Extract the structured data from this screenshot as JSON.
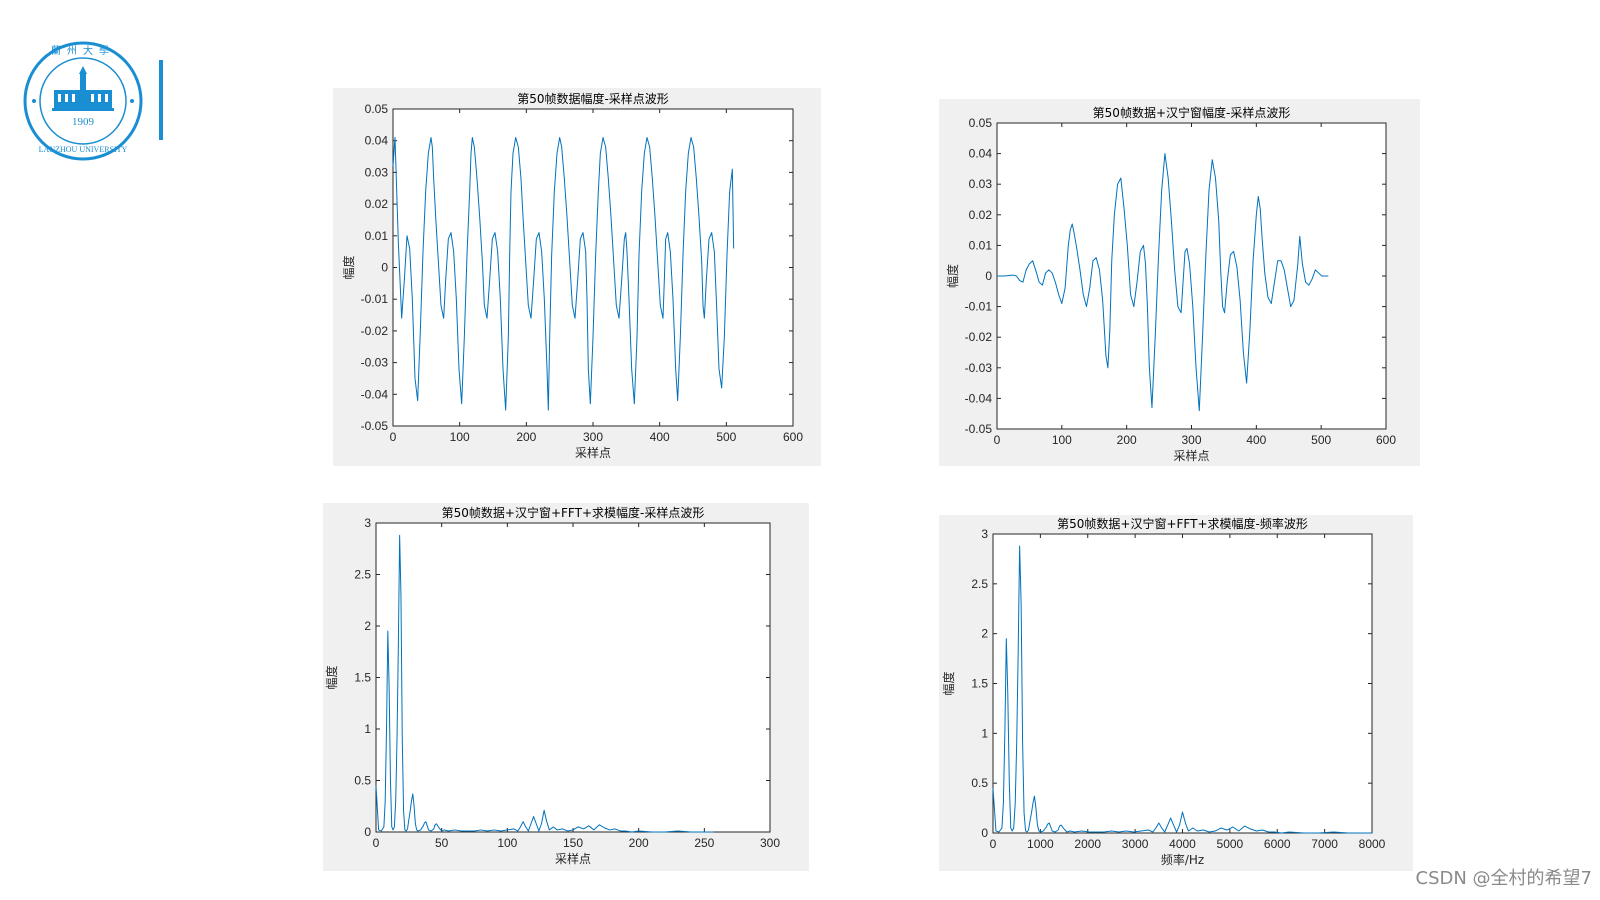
{
  "logo": {
    "name": "LANZHOU UNIVERSITY",
    "year": "1909",
    "chinese": "蘭州大學",
    "color": "#1a8ed2"
  },
  "watermark": "CSDN @全村的希望7",
  "chart_data": [
    {
      "type": "line",
      "title": "第50帧数据幅度-采样点波形",
      "xlabel": "采样点",
      "ylabel": "幅度",
      "xlim": [
        0,
        600
      ],
      "ylim": [
        -0.05,
        0.05
      ],
      "xticks": [
        0,
        100,
        200,
        300,
        400,
        500,
        600
      ],
      "xtick_labels": [
        "0",
        "100",
        "200",
        "300",
        "400",
        "500",
        "600"
      ],
      "yticks": [
        -0.05,
        -0.04,
        -0.03,
        -0.02,
        -0.01,
        0,
        0.01,
        0.02,
        0.03,
        0.04,
        0.05
      ],
      "ytick_labels": [
        "-0.05",
        "-0.04",
        "-0.03",
        "-0.02",
        "-0.01",
        "0",
        "0.01",
        "0.02",
        "0.03",
        "0.04",
        "0.05"
      ],
      "line_color": "#0072bd",
      "series": [
        {
          "x": [
            0,
            3,
            8,
            13,
            17,
            21,
            25,
            29,
            33,
            37,
            41,
            45,
            49,
            53,
            57,
            59,
            61,
            64,
            68,
            72,
            76,
            79,
            83,
            87,
            91,
            95,
            99,
            103,
            107,
            111,
            115,
            117,
            119,
            122,
            126,
            130,
            134,
            137,
            141,
            145,
            149,
            153,
            157,
            161,
            165,
            169,
            173,
            175,
            177,
            180,
            184,
            188,
            192,
            195,
            199,
            203,
            207,
            211,
            215,
            219,
            223,
            227,
            231,
            233,
            235,
            238,
            242,
            246,
            250,
            253,
            257,
            261,
            265,
            269,
            273,
            277,
            281,
            285,
            289,
            291,
            293,
            296,
            300,
            304,
            308,
            311,
            315,
            319,
            323,
            327,
            331,
            335,
            339,
            343,
            347,
            349,
            351,
            354,
            358,
            362,
            366,
            369,
            373,
            377,
            381,
            385,
            389,
            393,
            397,
            401,
            405,
            407,
            409,
            412,
            416,
            420,
            424,
            427,
            431,
            435,
            439,
            443,
            447,
            451,
            455,
            459,
            463,
            465,
            467,
            470,
            474,
            478,
            482,
            485,
            489,
            493,
            497,
            501,
            505,
            509,
            511
          ],
          "y": [
            0.032,
            0.041,
            0.008,
            -0.016,
            -0.004,
            0.01,
            0.006,
            -0.01,
            -0.035,
            -0.042,
            -0.02,
            0.005,
            0.024,
            0.036,
            0.041,
            0.038,
            0.028,
            0.016,
            0.002,
            -0.012,
            -0.016,
            -0.004,
            0.009,
            0.011,
            0.005,
            -0.01,
            -0.032,
            -0.043,
            -0.022,
            0.004,
            0.024,
            0.036,
            0.041,
            0.038,
            0.028,
            0.016,
            0.002,
            -0.012,
            -0.016,
            -0.004,
            0.009,
            0.011,
            0.005,
            -0.01,
            -0.032,
            -0.045,
            -0.022,
            0.004,
            0.024,
            0.036,
            0.041,
            0.038,
            0.028,
            0.016,
            0.002,
            -0.012,
            -0.016,
            -0.004,
            0.009,
            0.011,
            0.005,
            -0.01,
            -0.032,
            -0.045,
            -0.022,
            0.004,
            0.024,
            0.036,
            0.041,
            0.038,
            0.028,
            0.016,
            0.002,
            -0.012,
            -0.016,
            -0.004,
            0.009,
            0.011,
            0.005,
            -0.01,
            -0.032,
            -0.043,
            -0.022,
            0.004,
            0.024,
            0.036,
            0.041,
            0.038,
            0.028,
            0.016,
            0.002,
            -0.012,
            -0.016,
            -0.004,
            0.009,
            0.011,
            0.005,
            -0.01,
            -0.032,
            -0.043,
            -0.022,
            0.004,
            0.024,
            0.036,
            0.041,
            0.038,
            0.028,
            0.016,
            0.002,
            -0.012,
            -0.016,
            -0.004,
            0.009,
            0.011,
            0.005,
            -0.01,
            -0.032,
            -0.042,
            -0.022,
            0.004,
            0.024,
            0.036,
            0.041,
            0.038,
            0.028,
            0.016,
            0.002,
            -0.012,
            -0.016,
            -0.004,
            0.009,
            0.011,
            0.005,
            -0.01,
            -0.032,
            -0.038,
            -0.022,
            0.004,
            0.024,
            0.031,
            0.006
          ]
        }
      ]
    },
    {
      "type": "line",
      "title": "第50帧数据+汉宁窗幅度-采样点波形",
      "xlabel": "采样点",
      "ylabel": "幅度",
      "xlim": [
        0,
        600
      ],
      "ylim": [
        -0.05,
        0.05
      ],
      "xticks": [
        0,
        100,
        200,
        300,
        400,
        500,
        600
      ],
      "xtick_labels": [
        "0",
        "100",
        "200",
        "300",
        "400",
        "500",
        "600"
      ],
      "yticks": [
        -0.05,
        -0.04,
        -0.03,
        -0.02,
        -0.01,
        0,
        0.01,
        0.02,
        0.03,
        0.04,
        0.05
      ],
      "ytick_labels": [
        "-0.05",
        "-0.04",
        "-0.03",
        "-0.02",
        "-0.01",
        "0",
        "0.01",
        "0.02",
        "0.03",
        "0.04",
        "0.05"
      ],
      "line_color": "#0072bd",
      "series": [
        {
          "x": [
            0,
            5,
            10,
            15,
            20,
            25,
            30,
            35,
            40,
            45,
            50,
            55,
            58,
            61,
            65,
            70,
            75,
            80,
            85,
            90,
            95,
            100,
            105,
            110,
            113,
            116,
            119,
            123,
            128,
            133,
            138,
            143,
            148,
            153,
            158,
            163,
            168,
            171,
            174,
            177,
            181,
            186,
            191,
            196,
            201,
            206,
            211,
            216,
            221,
            226,
            229,
            232,
            235,
            239,
            244,
            249,
            254,
            259,
            264,
            269,
            274,
            279,
            284,
            287,
            290,
            293,
            297,
            302,
            307,
            312,
            317,
            322,
            327,
            332,
            337,
            342,
            345,
            348,
            351,
            355,
            360,
            365,
            370,
            375,
            380,
            385,
            390,
            395,
            400,
            403,
            406,
            409,
            413,
            418,
            423,
            428,
            433,
            438,
            443,
            448,
            453,
            458,
            461,
            464,
            467,
            471,
            476,
            481,
            486,
            491,
            496,
            501,
            506,
            511
          ],
          "y": [
            0.0,
            0.0,
            0.0,
            0.0001,
            0.0002,
            0.0003,
            0.0,
            -0.0015,
            -0.002,
            0.002,
            0.004,
            0.005,
            0.003,
            0.001,
            -0.002,
            -0.003,
            0.001,
            0.002,
            0.001,
            -0.002,
            -0.006,
            -0.009,
            -0.004,
            0.01,
            0.015,
            0.017,
            0.014,
            0.009,
            0.002,
            -0.006,
            -0.01,
            -0.004,
            0.005,
            0.006,
            0.002,
            -0.008,
            -0.026,
            -0.03,
            -0.018,
            0.005,
            0.02,
            0.03,
            0.032,
            0.022,
            0.01,
            -0.006,
            -0.01,
            -0.002,
            0.008,
            0.01,
            0.004,
            -0.01,
            -0.03,
            -0.043,
            -0.02,
            0.006,
            0.028,
            0.04,
            0.032,
            0.018,
            0.002,
            -0.01,
            -0.012,
            -0.002,
            0.008,
            0.009,
            0.004,
            -0.01,
            -0.03,
            -0.044,
            -0.02,
            0.006,
            0.028,
            0.038,
            0.032,
            0.018,
            0.002,
            -0.01,
            -0.012,
            -0.002,
            0.007,
            0.008,
            0.003,
            -0.008,
            -0.025,
            -0.035,
            -0.018,
            0.005,
            0.02,
            0.026,
            0.022,
            0.012,
            0.001,
            -0.007,
            -0.009,
            -0.002,
            0.005,
            0.005,
            0.002,
            -0.004,
            -0.01,
            -0.008,
            -0.002,
            0.004,
            0.013,
            0.004,
            -0.002,
            -0.003,
            -0.001,
            0.002,
            0.001,
            0.0,
            0.0,
            0.0
          ],
          "x_tail_note": ""
        }
      ]
    },
    {
      "type": "line",
      "title": "第50帧数据+汉宁窗+FFT+求模幅度-采样点波形",
      "xlabel": "采样点",
      "ylabel": "幅度",
      "xlim": [
        0,
        300
      ],
      "ylim": [
        0,
        3
      ],
      "xticks": [
        0,
        50,
        100,
        150,
        200,
        250,
        300
      ],
      "xtick_labels": [
        "0",
        "50",
        "100",
        "150",
        "200",
        "250",
        "300"
      ],
      "yticks": [
        0,
        0.5,
        1,
        1.5,
        2,
        2.5,
        3
      ],
      "ytick_labels": [
        "0",
        "0.5",
        "1",
        "1.5",
        "2",
        "2.5",
        "3"
      ],
      "line_color": "#0072bd",
      "series": [
        {
          "x": [
            0,
            2,
            4,
            6,
            7,
            8,
            9,
            10,
            11,
            12,
            13,
            14,
            15,
            16,
            17,
            18,
            19,
            20,
            21,
            22,
            23,
            24,
            25,
            26,
            27,
            28,
            29,
            30,
            31,
            32,
            34,
            36,
            37,
            38,
            39,
            40,
            42,
            44,
            45,
            46,
            48,
            50,
            52,
            55,
            60,
            65,
            70,
            75,
            80,
            85,
            90,
            95,
            100,
            105,
            108,
            110,
            112,
            114,
            116,
            118,
            120,
            122,
            124,
            126,
            128,
            130,
            132,
            135,
            138,
            142,
            146,
            150,
            154,
            158,
            162,
            166,
            170,
            174,
            178,
            182,
            186,
            190,
            195,
            200,
            210,
            220,
            230,
            240,
            250,
            257
          ],
          "y": [
            0.45,
            0.02,
            0.01,
            0.05,
            0.3,
            1.0,
            1.95,
            1.4,
            0.5,
            0.05,
            0.02,
            0.05,
            0.3,
            0.9,
            1.8,
            2.88,
            2.3,
            0.9,
            0.2,
            0.02,
            0.01,
            0.03,
            0.12,
            0.2,
            0.3,
            0.37,
            0.25,
            0.08,
            0.02,
            0.01,
            0.02,
            0.06,
            0.09,
            0.1,
            0.06,
            0.02,
            0.01,
            0.03,
            0.07,
            0.08,
            0.04,
            0.01,
            0.02,
            0.01,
            0.02,
            0.01,
            0.01,
            0.01,
            0.02,
            0.01,
            0.02,
            0.01,
            0.02,
            0.03,
            0.01,
            0.05,
            0.1,
            0.05,
            0.01,
            0.08,
            0.15,
            0.08,
            0.01,
            0.08,
            0.21,
            0.1,
            0.02,
            0.05,
            0.02,
            0.03,
            0.01,
            0.02,
            0.05,
            0.03,
            0.06,
            0.02,
            0.07,
            0.04,
            0.02,
            0.03,
            0.01,
            0.01,
            0.0,
            0.01,
            0.0,
            0.0,
            0.01,
            0.0,
            0.0,
            0.0
          ]
        }
      ]
    },
    {
      "type": "line",
      "title": "第50帧数据+汉宁窗+FFT+求模幅度-频率波形",
      "xlabel": "频率/Hz",
      "ylabel": "幅度",
      "xlim": [
        0,
        8000
      ],
      "ylim": [
        0,
        3
      ],
      "xticks": [
        0,
        1000,
        2000,
        3000,
        4000,
        5000,
        6000,
        7000,
        8000
      ],
      "xtick_labels": [
        "0",
        "1000",
        "2000",
        "3000",
        "4000",
        "5000",
        "6000",
        "7000",
        "8000"
      ],
      "yticks": [
        0,
        0.5,
        1,
        1.5,
        2,
        2.5,
        3
      ],
      "ytick_labels": [
        "0",
        "0.5",
        "1",
        "1.5",
        "2",
        "2.5",
        "3"
      ],
      "line_color": "#0072bd",
      "series": [
        {
          "x": [
            0,
            62,
            125,
            188,
            219,
            250,
            281,
            312,
            344,
            375,
            406,
            437,
            469,
            500,
            531,
            562,
            594,
            625,
            656,
            688,
            719,
            750,
            781,
            812,
            844,
            875,
            906,
            938,
            969,
            1000,
            1062,
            1125,
            1156,
            1188,
            1219,
            1250,
            1312,
            1375,
            1406,
            1438,
            1500,
            1562,
            1625,
            1719,
            1875,
            2031,
            2188,
            2344,
            2500,
            2656,
            2812,
            2969,
            3125,
            3281,
            3375,
            3438,
            3500,
            3562,
            3625,
            3688,
            3750,
            3812,
            3875,
            3938,
            4000,
            4062,
            4125,
            4219,
            4312,
            4438,
            4562,
            4688,
            4812,
            4938,
            5062,
            5188,
            5312,
            5438,
            5562,
            5688,
            5812,
            5938,
            6094,
            6250,
            6562,
            6875,
            7188,
            7500,
            7812,
            8000
          ],
          "y": [
            0.45,
            0.02,
            0.01,
            0.05,
            0.3,
            1.0,
            1.95,
            1.4,
            0.5,
            0.05,
            0.02,
            0.05,
            0.3,
            0.9,
            1.8,
            2.88,
            2.3,
            0.9,
            0.2,
            0.02,
            0.01,
            0.03,
            0.12,
            0.2,
            0.3,
            0.37,
            0.25,
            0.08,
            0.02,
            0.01,
            0.02,
            0.06,
            0.09,
            0.1,
            0.06,
            0.02,
            0.01,
            0.03,
            0.07,
            0.08,
            0.04,
            0.01,
            0.02,
            0.01,
            0.02,
            0.01,
            0.01,
            0.01,
            0.02,
            0.01,
            0.02,
            0.01,
            0.02,
            0.03,
            0.01,
            0.05,
            0.1,
            0.05,
            0.01,
            0.08,
            0.15,
            0.08,
            0.01,
            0.08,
            0.21,
            0.1,
            0.02,
            0.05,
            0.02,
            0.03,
            0.01,
            0.02,
            0.05,
            0.03,
            0.06,
            0.02,
            0.07,
            0.04,
            0.02,
            0.03,
            0.01,
            0.01,
            0.0,
            0.01,
            0.0,
            0.0,
            0.01,
            0.0,
            0.0,
            0.0
          ]
        }
      ]
    }
  ]
}
